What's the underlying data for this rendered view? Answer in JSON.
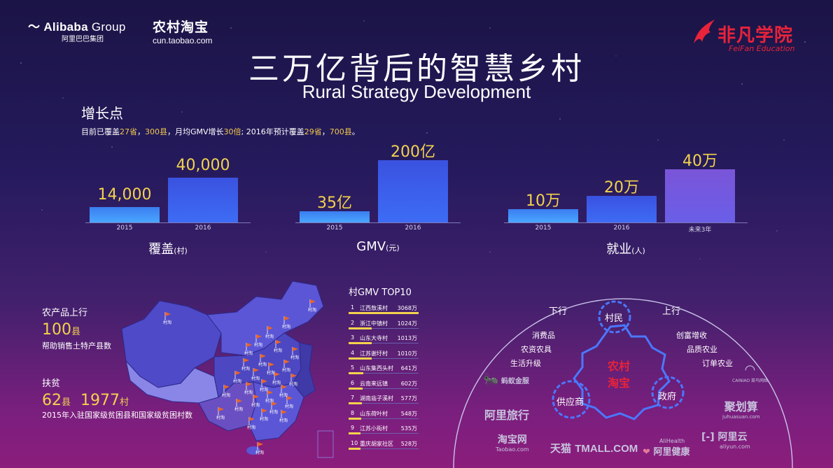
{
  "header": {
    "alibaba_logo": "Alibaba",
    "alibaba_logo_group": "Group",
    "alibaba_cn": "阿里巴巴集团",
    "cun_logo": "农村淘宝",
    "cun_url": "cun.taobao.com",
    "feifan_logo": "非凡学院",
    "feifan_en": "FeiFan Education"
  },
  "title": "三万亿背后的智慧乡村",
  "subtitle": "Rural Strategy Development",
  "growth": {
    "heading": "增长点",
    "summary_parts": [
      "目前已覆盖",
      "27省",
      "，",
      "300县",
      "，月均GMV增长",
      "30倍",
      "; 2016年预计覆盖",
      "29省",
      "，",
      "700县",
      "。"
    ]
  },
  "chart_data": [
    {
      "type": "bar",
      "title": "覆盖",
      "unit": "(村)",
      "categories": [
        "2015",
        "2016"
      ],
      "values": [
        14000,
        40000
      ],
      "value_labels": [
        "14,000",
        "40,000"
      ]
    },
    {
      "type": "bar",
      "title": "GMV",
      "unit": "(元)",
      "categories": [
        "2015",
        "2016"
      ],
      "values": [
        35,
        200
      ],
      "value_labels": [
        "35亿",
        "200亿"
      ]
    },
    {
      "type": "bar",
      "title": "就业",
      "unit": "(人)",
      "categories": [
        "2015",
        "2016",
        "未来3年"
      ],
      "values": [
        10,
        20,
        40
      ],
      "value_labels": [
        "10万",
        "20万",
        "40万"
      ]
    }
  ],
  "left_stats": {
    "upline_head": "农产品上行",
    "upline_num": "100",
    "upline_unit": "县",
    "upline_text": "帮助销售土特产县数",
    "poverty_head": "扶贫",
    "poverty_num1": "62",
    "poverty_unit1": "县",
    "poverty_num2": "1977",
    "poverty_unit2": "村",
    "poverty_text": "2015年入驻国家级贫困县和国家级贫困村数"
  },
  "map": {
    "marker_label": "村淘",
    "colors": {
      "base": "#5b56d6",
      "light": "#8a86e8",
      "dark": "#3f3aa8",
      "marker": "#e8662b"
    }
  },
  "top10": {
    "title": "村GMV TOP10",
    "rows": [
      {
        "rank": "1",
        "name": "江西敖溪村",
        "value": "3068万",
        "amount": 3068
      },
      {
        "rank": "2",
        "name": "浙江中镇村",
        "value": "1024万",
        "amount": 1024
      },
      {
        "rank": "3",
        "name": "山东大寺村",
        "value": "1013万",
        "amount": 1013
      },
      {
        "rank": "4",
        "name": "江苏谢圩村",
        "value": "1010万",
        "amount": 1010
      },
      {
        "rank": "5",
        "name": "山东集西头村",
        "value": "641万",
        "amount": 641
      },
      {
        "rank": "6",
        "name": "云南来远镇",
        "value": "602万",
        "amount": 602
      },
      {
        "rank": "7",
        "name": "湖南庙子溪村",
        "value": "577万",
        "amount": 577
      },
      {
        "rank": "8",
        "name": "山东荷叶村",
        "value": "548万",
        "amount": 548
      },
      {
        "rank": "9",
        "name": "江苏小街村",
        "value": "535万",
        "amount": 535
      },
      {
        "rank": "10",
        "name": "重庆胡家社区",
        "value": "528万",
        "amount": 528
      }
    ]
  },
  "ecosystem": {
    "down": "下行",
    "up": "上行",
    "villager": "村民",
    "center_line1": "农村",
    "center_line2": "淘宝",
    "supplier": "供应商",
    "government": "政府",
    "down_items": [
      "消费品",
      "农资农具",
      "生活升级"
    ],
    "up_items": [
      "创富增收",
      "品质农业",
      "订单农业"
    ],
    "partners": {
      "ant": "蚂蚁金服",
      "alitrip": "阿里旅行",
      "taobao": "淘宝网",
      "taobao_en": "Taobao.com",
      "tmall": "天猫",
      "tmall_en": "TMALL.COM",
      "alihealth_en": "AliHealth",
      "alihealth": "阿里健康",
      "aliyun": "阿里云",
      "aliyun_en": "aliyun.com",
      "juhuasuan": "聚划算",
      "juhuasuan_en": "juhuasuan.com",
      "cainiao": "CAINIAO 菜鸟网络"
    }
  }
}
